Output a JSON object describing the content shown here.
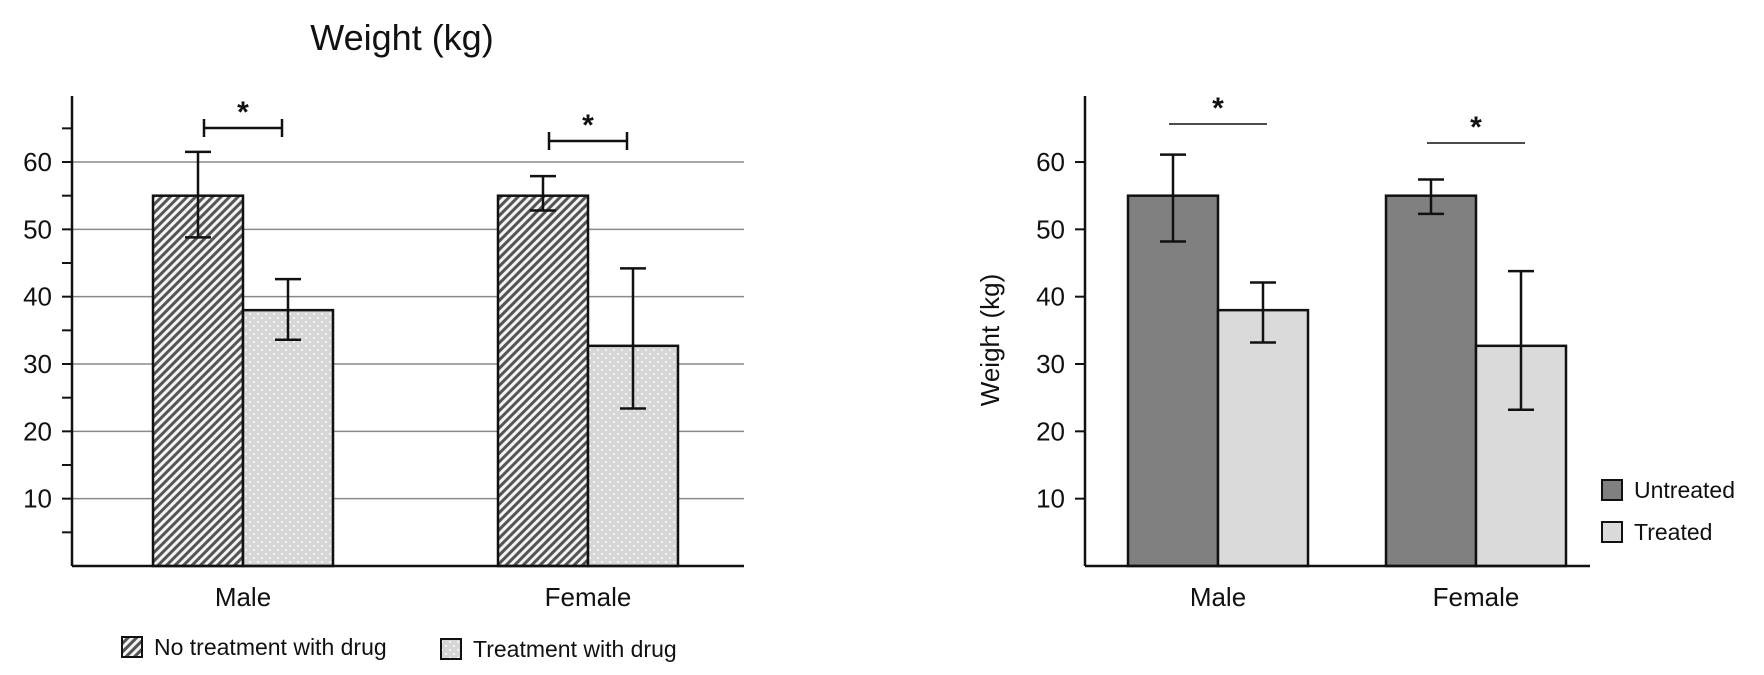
{
  "chart_data": [
    {
      "type": "bar",
      "title": "Weight (kg)",
      "ylabel": "",
      "xlabel": "",
      "categories": [
        "Male",
        "Female"
      ],
      "ylim": [
        0,
        70
      ],
      "yticks": [
        10,
        20,
        30,
        40,
        50,
        60
      ],
      "grid": true,
      "legend_position": "bottom",
      "series": [
        {
          "name": "No treatment with drug",
          "values": [
            55,
            55
          ],
          "err_low": [
            48.8,
            52.8
          ],
          "err_high": [
            61.5,
            57.9
          ],
          "fill": "hatch"
        },
        {
          "name": "Treatment with drug",
          "values": [
            38,
            32.7
          ],
          "err_low": [
            33.6,
            23.4
          ],
          "err_high": [
            42.6,
            44.2
          ],
          "fill": "dots"
        }
      ],
      "significance": [
        {
          "category": "Male",
          "label": "*"
        },
        {
          "category": "Female",
          "label": "*"
        }
      ]
    },
    {
      "type": "bar",
      "title": "",
      "ylabel": "Weight (kg)",
      "xlabel": "",
      "categories": [
        "Male",
        "Female"
      ],
      "ylim": [
        0,
        70
      ],
      "yticks": [
        10,
        20,
        30,
        40,
        50,
        60
      ],
      "grid": false,
      "legend_position": "right",
      "series": [
        {
          "name": "Untreated",
          "values": [
            55,
            55
          ],
          "err_low": [
            48.2,
            52.3
          ],
          "err_high": [
            61.1,
            57.4
          ],
          "color": "#808080"
        },
        {
          "name": "Treated",
          "values": [
            38,
            32.7
          ],
          "err_low": [
            33.2,
            23.2
          ],
          "err_high": [
            42.1,
            43.8
          ],
          "color": "#dadada"
        }
      ],
      "significance": [
        {
          "category": "Male",
          "label": "*"
        },
        {
          "category": "Female",
          "label": "*"
        }
      ]
    }
  ]
}
